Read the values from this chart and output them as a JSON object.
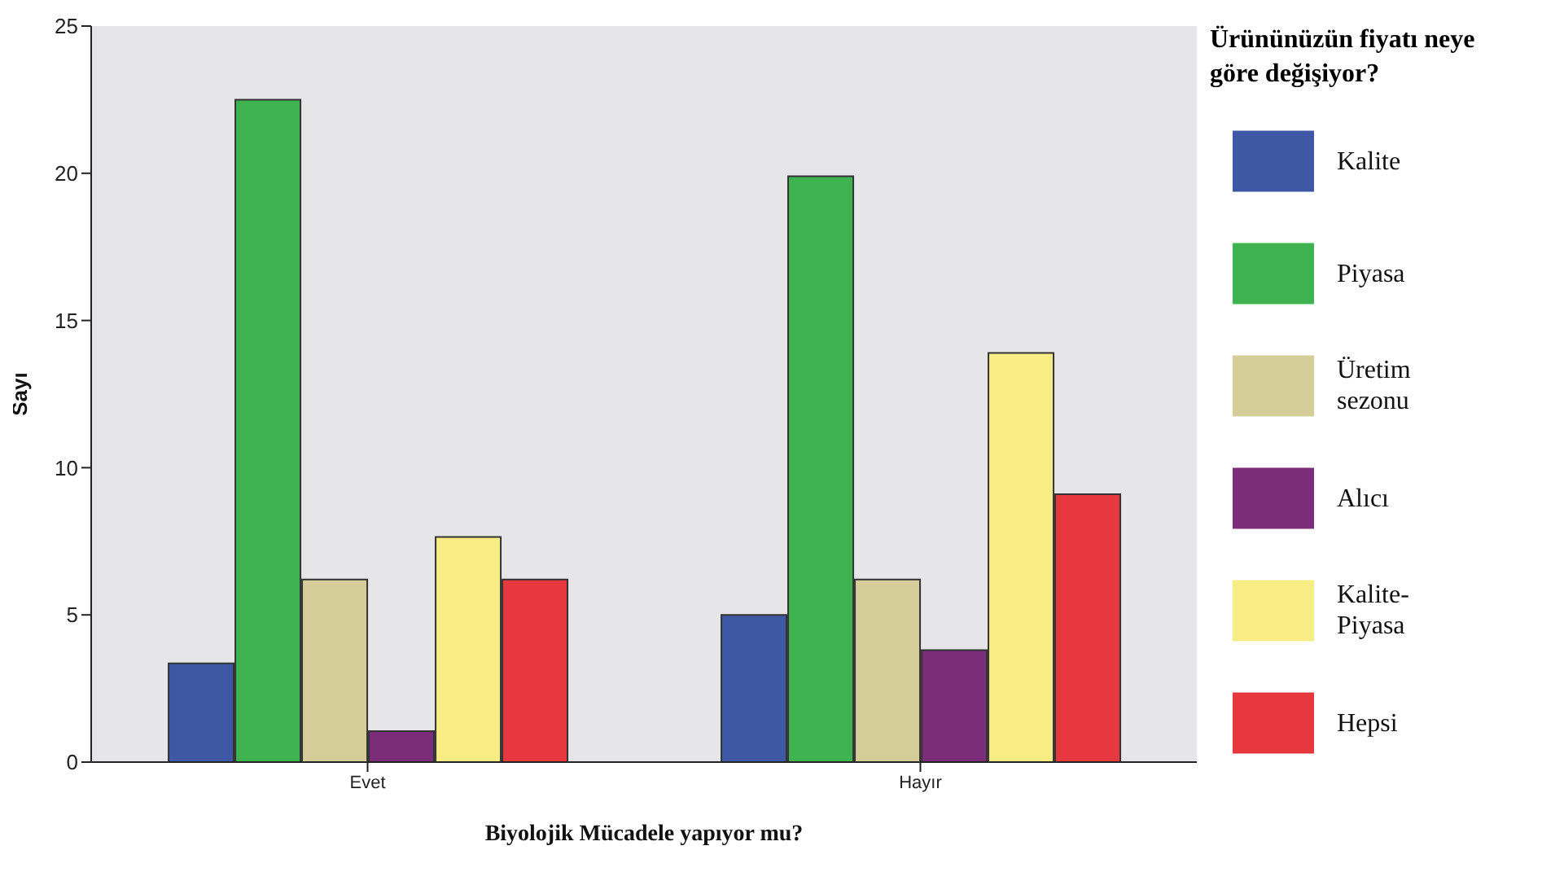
{
  "chart_data": {
    "type": "bar",
    "xlabel": "Biyolojik Mücadele yapıyor mu?",
    "ylabel": "Sayı",
    "legend_title": "Ürününüzün fiyatı neye göre değişiyor?",
    "legend": "right",
    "grid": false,
    "categories": [
      "Evet",
      "Hayır"
    ],
    "ylim": [
      0,
      25
    ],
    "yticks": [
      0,
      5,
      10,
      15,
      20,
      25
    ],
    "series": [
      {
        "name": "Kalite",
        "color": "#3f58a6",
        "values": [
          3.35,
          5
        ]
      },
      {
        "name": "Piyasa",
        "color": "#3fb34f",
        "values": [
          22.5,
          19.9
        ]
      },
      {
        "name": "Üretim sezonu",
        "color": "#d4cd9a",
        "values": [
          6.2,
          6.2
        ]
      },
      {
        "name": "Alıcı",
        "color": "#7b2d7a",
        "values": [
          1.05,
          3.8
        ]
      },
      {
        "name": "Kalite-Piyasa",
        "color": "#f8ec85",
        "values": [
          7.65,
          13.9
        ]
      },
      {
        "name": "Hepsi",
        "color": "#e8383f",
        "values": [
          6.2,
          9.1
        ]
      }
    ]
  }
}
